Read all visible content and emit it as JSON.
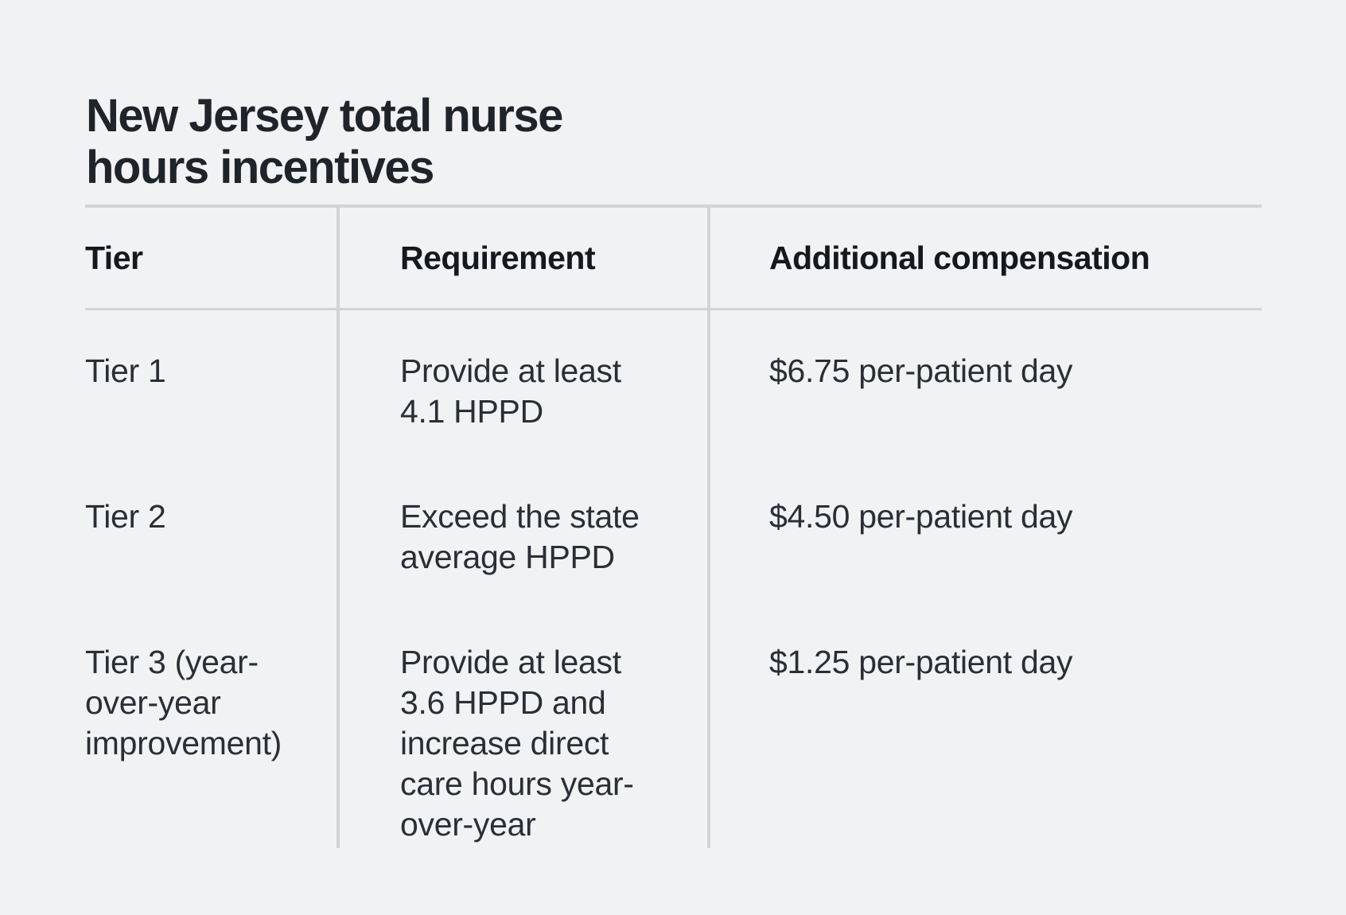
{
  "page": {
    "background_color": "#f1f2f3",
    "title_color": "#1f242a",
    "rule_color": "#d2d4d6",
    "title": "New Jersey total nurse\nhours incentives"
  },
  "table": {
    "columns": [
      "Tier",
      "Requirement",
      "Additional compensation"
    ],
    "rows": [
      {
        "tier": "Tier 1",
        "requirement": "Provide at least 4.1 HPPD",
        "compensation": "$6.75 per-patient day"
      },
      {
        "tier": "Tier 2",
        "requirement": "Exceed the state average HPPD",
        "compensation": "$4.50 per-patient day"
      },
      {
        "tier": "Tier 3 (year-over-year improvement)",
        "requirement": "Provide at least 3.6 HPPD and increase direct care hours year-over-year",
        "compensation": "$1.25 per-patient day"
      }
    ]
  },
  "chart_data": {
    "type": "table",
    "title": "New Jersey total nurse hours incentives",
    "columns": [
      "Tier",
      "Requirement",
      "Additional compensation"
    ],
    "rows": [
      [
        "Tier 1",
        "Provide at least 4.1 HPPD",
        "$6.75 per-patient day"
      ],
      [
        "Tier 2",
        "Exceed the state average HPPD",
        "$4.50 per-patient day"
      ],
      [
        "Tier 3 (year-over-year improvement)",
        "Provide at least 3.6 HPPD and increase direct care hours year-over-year",
        "$1.25 per-patient day"
      ]
    ]
  }
}
